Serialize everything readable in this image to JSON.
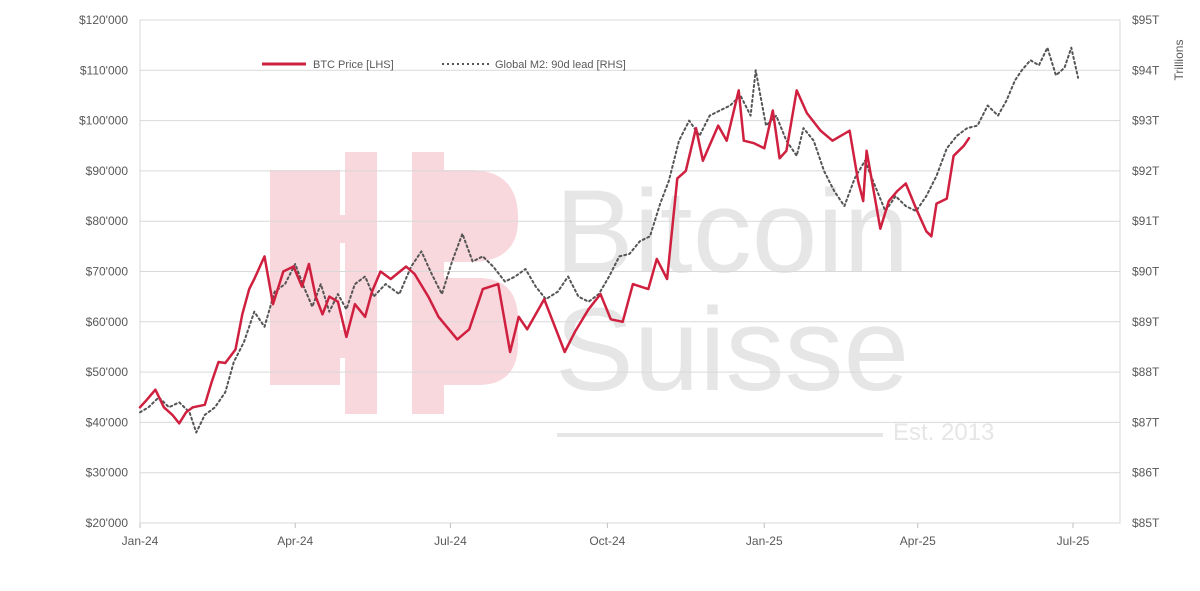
{
  "watermark": {
    "line1": "Bitcoin",
    "line2": "Suisse",
    "est": "Est. 2013",
    "logo": "bitcoin-suisse-logo"
  },
  "chart_data": {
    "type": "line",
    "grid": "horizontal",
    "legend_position": "top-left",
    "x_ticks": [
      "Jan-24",
      "Apr-24",
      "Jul-24",
      "Oct-24",
      "Jan-25",
      "Apr-25",
      "Jul-25"
    ],
    "y_left": {
      "ticks": [
        "$20'000",
        "$30'000",
        "$40'000",
        "$50'000",
        "$60'000",
        "$70'000",
        "$80'000",
        "$90'000",
        "$100'000",
        "$110'000",
        "$120'000"
      ],
      "range": [
        20000,
        120000
      ]
    },
    "y_right": {
      "label": "Trillions",
      "ticks": [
        "$85T",
        "$86T",
        "$87T",
        "$88T",
        "$89T",
        "$90T",
        "$91T",
        "$92T",
        "$93T",
        "$94T",
        "$95T"
      ],
      "range": [
        85,
        95
      ]
    },
    "series": [
      {
        "name": "BTC Price [LHS]",
        "axis": "left",
        "color": "#d0203f",
        "style": "solid",
        "points": [
          [
            "2024-01-01",
            43000
          ],
          [
            "2024-01-05",
            44500
          ],
          [
            "2024-01-10",
            46500
          ],
          [
            "2024-01-15",
            43000
          ],
          [
            "2024-01-20",
            41500
          ],
          [
            "2024-01-24",
            39800
          ],
          [
            "2024-01-28",
            42000
          ],
          [
            "2024-02-01",
            43000
          ],
          [
            "2024-02-08",
            43500
          ],
          [
            "2024-02-12",
            48000
          ],
          [
            "2024-02-16",
            52000
          ],
          [
            "2024-02-20",
            51800
          ],
          [
            "2024-02-26",
            54500
          ],
          [
            "2024-03-01",
            61500
          ],
          [
            "2024-03-05",
            66500
          ],
          [
            "2024-03-08",
            68500
          ],
          [
            "2024-03-14",
            73000
          ],
          [
            "2024-03-19",
            63500
          ],
          [
            "2024-03-25",
            70000
          ],
          [
            "2024-03-31",
            71000
          ],
          [
            "2024-04-05",
            67000
          ],
          [
            "2024-04-09",
            71500
          ],
          [
            "2024-04-13",
            65000
          ],
          [
            "2024-04-17",
            61500
          ],
          [
            "2024-04-21",
            65000
          ],
          [
            "2024-04-26",
            64000
          ],
          [
            "2024-05-01",
            57000
          ],
          [
            "2024-05-06",
            63500
          ],
          [
            "2024-05-12",
            61000
          ],
          [
            "2024-05-16",
            66000
          ],
          [
            "2024-05-21",
            70000
          ],
          [
            "2024-05-27",
            68500
          ],
          [
            "2024-06-05",
            71000
          ],
          [
            "2024-06-10",
            69500
          ],
          [
            "2024-06-18",
            65000
          ],
          [
            "2024-06-24",
            61000
          ],
          [
            "2024-07-05",
            56500
          ],
          [
            "2024-07-12",
            58500
          ],
          [
            "2024-07-20",
            66500
          ],
          [
            "2024-07-29",
            67500
          ],
          [
            "2024-08-05",
            54000
          ],
          [
            "2024-08-10",
            61000
          ],
          [
            "2024-08-15",
            58500
          ],
          [
            "2024-08-25",
            64500
          ],
          [
            "2024-09-06",
            54000
          ],
          [
            "2024-09-12",
            58000
          ],
          [
            "2024-09-20",
            62500
          ],
          [
            "2024-09-27",
            65500
          ],
          [
            "2024-10-03",
            60500
          ],
          [
            "2024-10-10",
            60000
          ],
          [
            "2024-10-16",
            67500
          ],
          [
            "2024-10-25",
            66500
          ],
          [
            "2024-10-30",
            72500
          ],
          [
            "2024-11-05",
            68500
          ],
          [
            "2024-11-11",
            88500
          ],
          [
            "2024-11-16",
            90000
          ],
          [
            "2024-11-22",
            98500
          ],
          [
            "2024-11-26",
            92000
          ],
          [
            "2024-12-05",
            99000
          ],
          [
            "2024-12-10",
            96000
          ],
          [
            "2024-12-17",
            106000
          ],
          [
            "2024-12-20",
            96000
          ],
          [
            "2024-12-26",
            95500
          ],
          [
            "2025-01-01",
            94500
          ],
          [
            "2025-01-06",
            102000
          ],
          [
            "2025-01-10",
            92500
          ],
          [
            "2025-01-14",
            94000
          ],
          [
            "2025-01-20",
            106000
          ],
          [
            "2025-01-26",
            101500
          ],
          [
            "2025-02-03",
            98000
          ],
          [
            "2025-02-10",
            96000
          ],
          [
            "2025-02-20",
            98000
          ],
          [
            "2025-02-25",
            88000
          ],
          [
            "2025-02-28",
            84000
          ],
          [
            "2025-03-02",
            94000
          ],
          [
            "2025-03-10",
            78500
          ],
          [
            "2025-03-15",
            84000
          ],
          [
            "2025-03-20",
            86000
          ],
          [
            "2025-03-25",
            87500
          ],
          [
            "2025-03-31",
            82500
          ],
          [
            "2025-04-06",
            78000
          ],
          [
            "2025-04-09",
            77000
          ],
          [
            "2025-04-12",
            83500
          ],
          [
            "2025-04-18",
            84500
          ],
          [
            "2025-04-22",
            93000
          ],
          [
            "2025-04-28",
            95000
          ],
          [
            "2025-05-01",
            96500
          ]
        ]
      },
      {
        "name": "Global M2: 90d lead [RHS]",
        "axis": "right",
        "color": "#555555",
        "style": "dotted",
        "points": [
          [
            "2024-01-01",
            87.2
          ],
          [
            "2024-01-06",
            87.3
          ],
          [
            "2024-01-12",
            87.5
          ],
          [
            "2024-01-18",
            87.3
          ],
          [
            "2024-01-24",
            87.4
          ],
          [
            "2024-01-30",
            87.2
          ],
          [
            "2024-02-03",
            86.8
          ],
          [
            "2024-02-08",
            87.15
          ],
          [
            "2024-02-14",
            87.3
          ],
          [
            "2024-02-20",
            87.6
          ],
          [
            "2024-02-25",
            88.2
          ],
          [
            "2024-03-02",
            88.6
          ],
          [
            "2024-03-08",
            89.2
          ],
          [
            "2024-03-14",
            88.9
          ],
          [
            "2024-03-20",
            89.6
          ],
          [
            "2024-03-26",
            89.75
          ],
          [
            "2024-04-01",
            90.15
          ],
          [
            "2024-04-06",
            89.7
          ],
          [
            "2024-04-11",
            89.3
          ],
          [
            "2024-04-16",
            89.75
          ],
          [
            "2024-04-21",
            89.2
          ],
          [
            "2024-04-26",
            89.55
          ],
          [
            "2024-05-01",
            89.25
          ],
          [
            "2024-05-06",
            89.75
          ],
          [
            "2024-05-12",
            89.9
          ],
          [
            "2024-05-17",
            89.5
          ],
          [
            "2024-05-24",
            89.75
          ],
          [
            "2024-06-01",
            89.55
          ],
          [
            "2024-06-08",
            90.1
          ],
          [
            "2024-06-14",
            90.4
          ],
          [
            "2024-06-20",
            89.95
          ],
          [
            "2024-06-26",
            89.55
          ],
          [
            "2024-07-02",
            90.2
          ],
          [
            "2024-07-08",
            90.75
          ],
          [
            "2024-07-14",
            90.2
          ],
          [
            "2024-07-20",
            90.3
          ],
          [
            "2024-07-26",
            90.1
          ],
          [
            "2024-08-02",
            89.8
          ],
          [
            "2024-08-08",
            89.9
          ],
          [
            "2024-08-14",
            90.05
          ],
          [
            "2024-08-20",
            89.7
          ],
          [
            "2024-08-26",
            89.45
          ],
          [
            "2024-09-02",
            89.6
          ],
          [
            "2024-09-08",
            89.9
          ],
          [
            "2024-09-14",
            89.5
          ],
          [
            "2024-09-20",
            89.4
          ],
          [
            "2024-09-26",
            89.55
          ],
          [
            "2024-10-02",
            89.9
          ],
          [
            "2024-10-08",
            90.3
          ],
          [
            "2024-10-14",
            90.35
          ],
          [
            "2024-10-20",
            90.6
          ],
          [
            "2024-10-26",
            90.7
          ],
          [
            "2024-11-01",
            91.35
          ],
          [
            "2024-11-06",
            91.8
          ],
          [
            "2024-11-12",
            92.6
          ],
          [
            "2024-11-18",
            93.0
          ],
          [
            "2024-11-24",
            92.7
          ],
          [
            "2024-11-30",
            93.1
          ],
          [
            "2024-12-06",
            93.2
          ],
          [
            "2024-12-12",
            93.3
          ],
          [
            "2024-12-18",
            93.5
          ],
          [
            "2024-12-24",
            93.1
          ],
          [
            "2024-12-27",
            94.0
          ],
          [
            "2025-01-02",
            92.9
          ],
          [
            "2025-01-08",
            93.1
          ],
          [
            "2025-01-14",
            92.6
          ],
          [
            "2025-01-20",
            92.3
          ],
          [
            "2025-01-24",
            92.85
          ],
          [
            "2025-01-30",
            92.6
          ],
          [
            "2025-02-05",
            92.0
          ],
          [
            "2025-02-11",
            91.6
          ],
          [
            "2025-02-17",
            91.3
          ],
          [
            "2025-02-23",
            91.85
          ],
          [
            "2025-03-01",
            92.2
          ],
          [
            "2025-03-07",
            91.7
          ],
          [
            "2025-03-13",
            91.2
          ],
          [
            "2025-03-19",
            91.5
          ],
          [
            "2025-03-25",
            91.3
          ],
          [
            "2025-03-31",
            91.2
          ],
          [
            "2025-04-06",
            91.5
          ],
          [
            "2025-04-12",
            91.9
          ],
          [
            "2025-04-18",
            92.45
          ],
          [
            "2025-04-24",
            92.7
          ],
          [
            "2025-04-30",
            92.85
          ],
          [
            "2025-05-06",
            92.9
          ],
          [
            "2025-05-12",
            93.3
          ],
          [
            "2025-05-18",
            93.1
          ],
          [
            "2025-05-23",
            93.4
          ],
          [
            "2025-05-28",
            93.8
          ],
          [
            "2025-06-01",
            94.0
          ],
          [
            "2025-06-06",
            94.2
          ],
          [
            "2025-06-11",
            94.1
          ],
          [
            "2025-06-16",
            94.45
          ],
          [
            "2025-06-21",
            93.9
          ],
          [
            "2025-06-26",
            94.05
          ],
          [
            "2025-06-30",
            94.45
          ],
          [
            "2025-07-04",
            93.85
          ]
        ]
      }
    ]
  }
}
